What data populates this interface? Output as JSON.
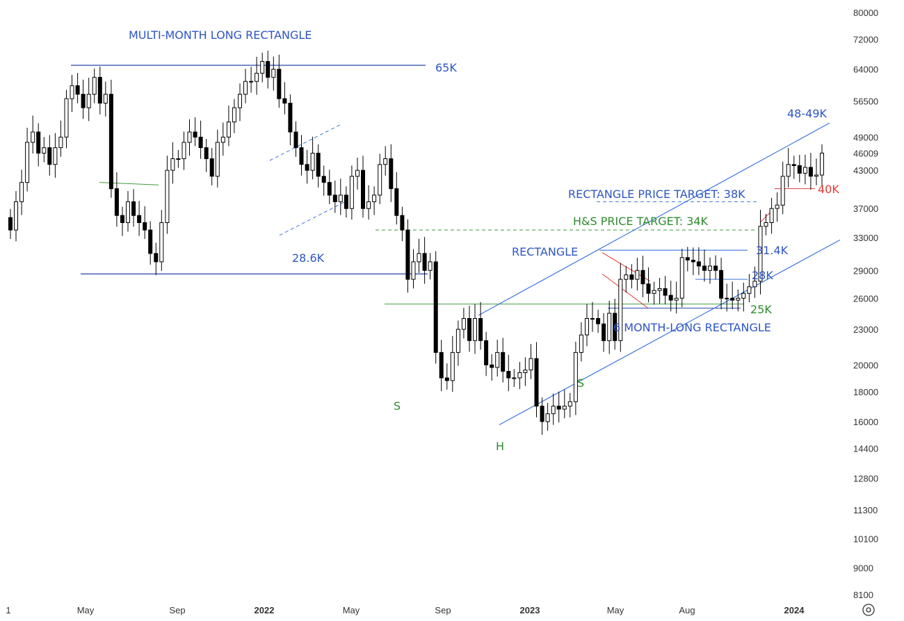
{
  "chart_data": {
    "type": "candlestick",
    "title": "",
    "xlabel": "",
    "ylabel": "",
    "scale": "log",
    "ylim": [
      7900,
      80000
    ],
    "y_ticks": [
      "80000",
      "72000",
      "64000",
      "56500",
      "49000",
      "46009",
      "43000",
      "37000",
      "33000",
      "29000",
      "26000",
      "23000",
      "20000",
      "18000",
      "16000",
      "14400",
      "12800",
      "11300",
      "10100",
      "9000",
      "8100"
    ],
    "x_ticks": [
      {
        "label": "1",
        "bold": false
      },
      {
        "label": "May",
        "bold": false
      },
      {
        "label": "Sep",
        "bold": false
      },
      {
        "label": "2022",
        "bold": true
      },
      {
        "label": "May",
        "bold": false
      },
      {
        "label": "Sep",
        "bold": false
      },
      {
        "label": "2023",
        "bold": true
      },
      {
        "label": "May",
        "bold": false
      },
      {
        "label": "Aug",
        "bold": false
      },
      {
        "label": "2024",
        "bold": true
      }
    ],
    "candles_weekly_close": [
      34000,
      38000,
      41000,
      48000,
      50000,
      46000,
      47000,
      44000,
      47000,
      49000,
      57000,
      60000,
      58000,
      55000,
      58000,
      62000,
      56000,
      58000,
      40000,
      36000,
      35000,
      38000,
      36000,
      35000,
      34000,
      31000,
      30000,
      35000,
      43000,
      45000,
      45000,
      48000,
      50000,
      49000,
      47000,
      45000,
      42000,
      48000,
      49000,
      52000,
      55000,
      58000,
      61000,
      61000,
      63000,
      66000,
      62000,
      64000,
      57000,
      56000,
      50000,
      47000,
      44000,
      43000,
      46000,
      42000,
      41000,
      39000,
      38000,
      39000,
      37000,
      42000,
      43000,
      37000,
      38000,
      39000,
      44000,
      45000,
      40000,
      36000,
      34000,
      28000,
      30000,
      31000,
      29000,
      30000,
      21000,
      19000,
      18800,
      21000,
      23000,
      24000,
      22000,
      24000,
      22000,
      20000,
      19800,
      21000,
      19500,
      19000,
      19000,
      19400,
      19600,
      20500,
      17000,
      16000,
      16500,
      17000,
      16800,
      17000,
      17300,
      21000,
      22500,
      24000,
      24000,
      23500,
      22000,
      24500,
      22000,
      28000,
      28500,
      28000,
      29000,
      27500,
      26500,
      26800,
      27000,
      26300,
      25800,
      26000,
      30500,
      30200,
      30000,
      29500,
      29000,
      29500,
      29000,
      26000,
      26000,
      25800,
      26000,
      26500,
      27200,
      27800,
      34500,
      35000,
      37000,
      37500,
      42000,
      44000,
      43800,
      42500,
      43500,
      42000,
      42200,
      46009
    ],
    "levels": [
      {
        "label": "65K",
        "value": 65000
      },
      {
        "label": "28.6K",
        "value": 28600
      },
      {
        "label": "31.4K",
        "value": 31400
      },
      {
        "label": "28K",
        "value": 28000
      },
      {
        "label": "25K",
        "value": 25000
      },
      {
        "label": "40K",
        "value": 40000
      },
      {
        "label": "RECTANGLE PRICE TARGET: 38K",
        "value": 38000
      },
      {
        "label": "H&S PRICE TARGET: 34K",
        "value": 34000
      },
      {
        "label": "48-49K",
        "value": 48500
      }
    ],
    "annotations": {
      "multi_month_rect": "MULTI-MONTH LONG RECTANGLE",
      "level_65k": "65K",
      "level_286k": "28.6K",
      "rect_target": "RECTANGLE PRICE TARGET: 38K",
      "hs_target": "H&S PRICE TARGET: 34K",
      "rectangle": "RECTANGLE",
      "level_314k": "31.4K",
      "level_28k": "28K",
      "level_25k": "25K",
      "level_40k": "40K",
      "level_4849k": "48-49K",
      "six_month_rect": "6 MONTH-LONG RECTANGLE",
      "shoulder_left": "S",
      "head": "H",
      "shoulder_right": "S"
    },
    "colors": {
      "up_fill": "#ffffff",
      "down_fill": "#000000",
      "wick": "#000000",
      "blue_line": "#3b73e0",
      "dark_blue_line": "#2845a8",
      "green_line": "#3c9a3c",
      "red_line": "#e53935",
      "blue_text": "#2d55c4",
      "green_text": "#2e8b2e",
      "red_text": "#e53935"
    }
  },
  "settings_icon": "settings-icon"
}
